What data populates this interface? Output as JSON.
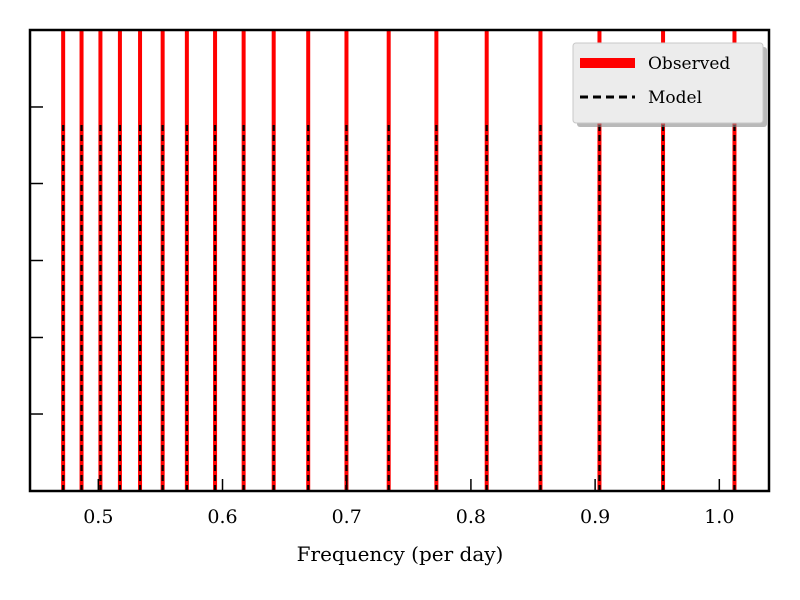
{
  "chart_data": {
    "type": "line",
    "title": "",
    "xlabel": "Frequency (per day)",
    "ylabel": "",
    "xlim": [
      0.445,
      1.04
    ],
    "ylim": [
      0,
      1.0
    ],
    "xticks": [
      0.5,
      0.6,
      0.7,
      0.8,
      0.9,
      1.0
    ],
    "xtick_labels": [
      "0.5",
      "0.6",
      "0.7",
      "0.8",
      "0.9",
      "1.0"
    ],
    "yticks": [
      0.167,
      0.333,
      0.5,
      0.667,
      0.833
    ],
    "grid": false,
    "legend_position": "top-right",
    "series": [
      {
        "name": "Observed",
        "style": "solid",
        "color": "#ff0000",
        "height": 1.0,
        "x": [
          0.4717,
          0.4865,
          0.5017,
          0.5174,
          0.5336,
          0.5518,
          0.5713,
          0.594,
          0.617,
          0.6412,
          0.669,
          0.6998,
          0.7338,
          0.7722,
          0.8127,
          0.856,
          0.9035,
          0.9547,
          1.0122
        ]
      },
      {
        "name": "Model",
        "style": "dashed",
        "color": "#000000",
        "height": 0.8,
        "x": [
          0.4717,
          0.4865,
          0.5017,
          0.5174,
          0.5336,
          0.5518,
          0.5713,
          0.594,
          0.617,
          0.6412,
          0.669,
          0.6998,
          0.7338,
          0.7722,
          0.8127,
          0.856,
          0.9035,
          0.9547,
          1.0122
        ]
      }
    ]
  }
}
